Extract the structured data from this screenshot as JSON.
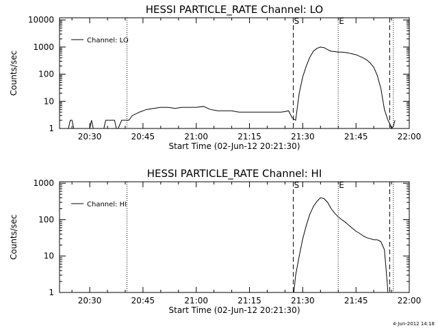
{
  "chart_data": [
    {
      "type": "line",
      "title": "HESSI PARTICLE_RATE Channel: LO",
      "xlabel": "Start Time (02-Jun-12 20:21:30)",
      "ylabel": "Counts/sec",
      "x_ticks": [
        "20:30",
        "20:45",
        "21:00",
        "21:15",
        "21:30",
        "21:45",
        "22:00"
      ],
      "y_ticks": [
        "1",
        "10",
        "100",
        "1000",
        "10000"
      ],
      "y_scale": "log",
      "xlim": [
        "20:21:30",
        "22:00:00"
      ],
      "ylim": [
        1,
        12000
      ],
      "legend": "top-left",
      "series": [
        {
          "name": "Channel: LO",
          "x": [
            "20:24",
            "20:24:30",
            "20:25",
            "20:25:30",
            "20:30",
            "20:30:30",
            "20:31",
            "20:34",
            "20:34:30",
            "20:35",
            "20:36",
            "20:37",
            "20:37:30",
            "20:38",
            "20:39",
            "20:40",
            "20:41",
            "20:42",
            "20:44",
            "20:46",
            "20:48",
            "20:50",
            "20:52",
            "20:54",
            "20:56",
            "20:58",
            "21:00",
            "21:02",
            "21:04",
            "21:06",
            "21:08",
            "21:10",
            "21:12",
            "21:14",
            "21:16",
            "21:18",
            "21:20",
            "21:22",
            "21:24",
            "21:25",
            "21:26",
            "21:27",
            "21:28",
            "21:29",
            "21:30",
            "21:31",
            "21:32",
            "21:33",
            "21:34",
            "21:35",
            "21:36",
            "21:37",
            "21:38",
            "21:39",
            "21:40",
            "21:41",
            "21:42",
            "21:43",
            "21:44",
            "21:45",
            "21:46",
            "21:47",
            "21:48",
            "21:49",
            "21:50",
            "21:51",
            "21:52",
            "21:53",
            "21:54",
            "21:54:30",
            "21:55",
            "21:55:30",
            "21:56"
          ],
          "y": [
            1,
            2,
            2,
            1,
            1,
            2,
            1,
            1,
            2,
            2,
            2,
            2,
            1,
            1,
            2,
            2,
            2,
            3,
            4,
            5,
            5.5,
            6,
            6,
            5.5,
            6,
            6,
            6,
            6.5,
            5,
            4.5,
            4.5,
            4.5,
            4,
            4,
            4,
            4,
            4,
            4,
            4,
            4.2,
            4.5,
            2.5,
            2,
            20,
            80,
            200,
            420,
            700,
            900,
            1000,
            950,
            800,
            700,
            680,
            650,
            650,
            630,
            600,
            560,
            520,
            460,
            400,
            340,
            260,
            180,
            90,
            30,
            5,
            2,
            1.5,
            1,
            1.2,
            2
          ]
        }
      ],
      "markers": [
        {
          "label": "S",
          "x": "21:27:20",
          "style": "dashed"
        },
        {
          "label": "E",
          "x": "21:40:00",
          "style": "dotted"
        },
        {
          "label": "",
          "x": "20:40:30",
          "style": "dotted"
        },
        {
          "label": "",
          "x": "21:54:30",
          "style": "dashed"
        },
        {
          "label": "",
          "x": "21:55:30",
          "style": "dotted"
        }
      ]
    },
    {
      "type": "line",
      "title": "HESSI PARTICLE_RATE Channel: HI",
      "xlabel": "Start Time (02-Jun-12 20:21:30)",
      "ylabel": "Counts/sec",
      "x_ticks": [
        "20:30",
        "20:45",
        "21:00",
        "21:15",
        "21:30",
        "21:45",
        "22:00"
      ],
      "y_ticks": [
        "1",
        "10",
        "100",
        "1000"
      ],
      "y_scale": "log",
      "xlim": [
        "20:21:30",
        "22:00:00"
      ],
      "ylim": [
        1,
        1100
      ],
      "legend": "top-left",
      "series": [
        {
          "name": "Channel: HI",
          "x": [
            "21:27:30",
            "21:28",
            "21:29",
            "21:30",
            "21:31",
            "21:32",
            "21:33",
            "21:34",
            "21:35",
            "21:36",
            "21:37",
            "21:38",
            "21:39",
            "21:40",
            "21:41",
            "21:42",
            "21:43",
            "21:44",
            "21:45",
            "21:46",
            "21:47",
            "21:48",
            "21:49",
            "21:50",
            "21:51",
            "21:52",
            "21:53",
            "21:53:30",
            "21:54"
          ],
          "y": [
            1,
            3,
            10,
            30,
            70,
            140,
            230,
            320,
            400,
            380,
            300,
            200,
            150,
            120,
            100,
            85,
            70,
            58,
            48,
            42,
            36,
            32,
            30,
            28,
            28,
            25,
            15,
            4,
            1
          ]
        }
      ],
      "markers": [
        {
          "label": "S",
          "x": "21:27:20",
          "style": "dashed"
        },
        {
          "label": "E",
          "x": "21:40:00",
          "style": "dotted"
        },
        {
          "label": "",
          "x": "20:40:30",
          "style": "dotted"
        },
        {
          "label": "",
          "x": "21:54:30",
          "style": "dashed"
        },
        {
          "label": "",
          "x": "21:55:30",
          "style": "dotted"
        }
      ]
    }
  ],
  "footer": {
    "timestamp": "4-Jun-2012 14:18"
  }
}
